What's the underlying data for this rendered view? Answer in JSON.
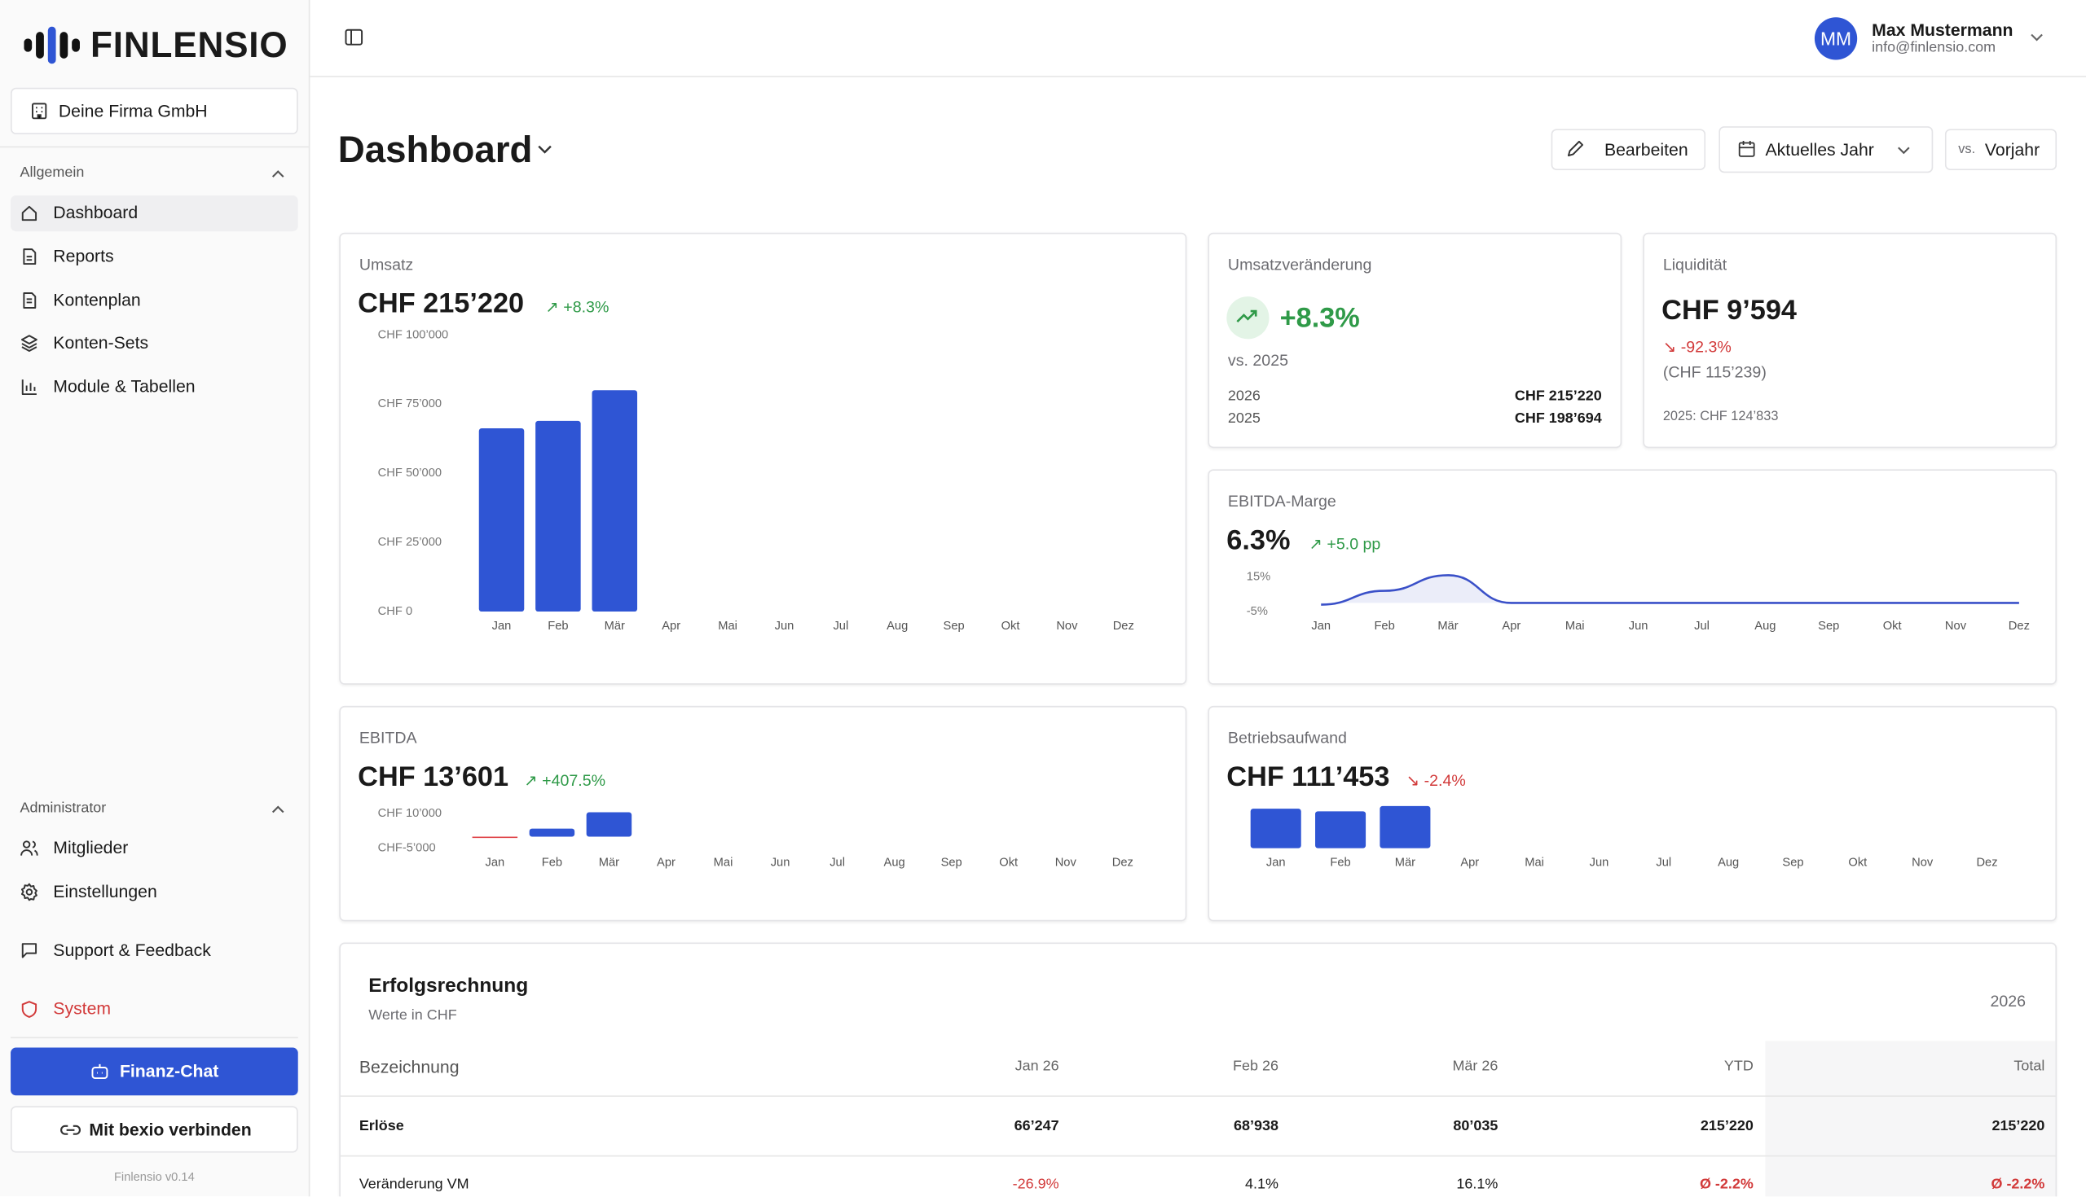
{
  "sidebar": {
    "logo": "FINLENSIO",
    "company": "Deine Firma GmbH",
    "sections": [
      {
        "title": "Allgemein",
        "items": [
          "Dashboard",
          "Reports",
          "Kontenplan",
          "Konten-Sets",
          "Module & Tabellen"
        ]
      },
      {
        "title": "Administrator",
        "items": [
          "Mitglieder",
          "Einstellungen"
        ]
      }
    ],
    "support": "Support & Feedback",
    "system": "System",
    "chat_button": "Finanz-Chat",
    "connect_button": "Mit bexio verbinden",
    "version": "Finlensio v0.14"
  },
  "header": {
    "initials": "MM",
    "name": "Max Mustermann",
    "email": "info@finlensio.com"
  },
  "page": {
    "title": "Dashboard",
    "edit": "Bearbeiten",
    "period": "Aktuelles Jahr",
    "compare_prefix": "vs.",
    "compare": "Vorjahr"
  },
  "cards": {
    "umsatz": {
      "title": "Umsatz",
      "value": "CHF 215’220",
      "change": "+8.3%",
      "chart": {
        "type": "bar",
        "categories": [
          "Jan",
          "Feb",
          "Mär",
          "Apr",
          "Mai",
          "Jun",
          "Jul",
          "Aug",
          "Sep",
          "Okt",
          "Nov",
          "Dez"
        ],
        "values": [
          66247,
          68938,
          80035,
          null,
          null,
          null,
          null,
          null,
          null,
          null,
          null,
          null
        ],
        "color": "#2f55d4",
        "negative_color": "#e0474c",
        "ylim": [
          0,
          100000
        ],
        "yticks": [
          {
            "value": 0,
            "label": "CHF 0"
          },
          {
            "value": 25000,
            "label": "CHF 25’000"
          },
          {
            "value": 50000,
            "label": "CHF 50’000"
          },
          {
            "value": 75000,
            "label": "CHF 75’000"
          },
          {
            "value": 100000,
            "label": "CHF 100’000"
          }
        ]
      }
    },
    "umsatzveraenderung": {
      "title": "Umsatzveränderung",
      "value": "+8.3%",
      "subtitle": "vs. 2025",
      "rows": [
        [
          "2026",
          "CHF 215’220"
        ],
        [
          "2025",
          "CHF 198’694"
        ]
      ]
    },
    "liquiditaet": {
      "title": "Liquidität",
      "value": "CHF 9’594",
      "change": "-92.3%",
      "previous": "(CHF 115’239)",
      "note": "2025: CHF 124’833"
    },
    "ebitda_marge": {
      "title": "EBITDA-Marge",
      "value": "6.3%",
      "change": "+5.0 pp",
      "chart": {
        "type": "line",
        "categories": [
          "Jan",
          "Feb",
          "Mär",
          "Apr",
          "Mai",
          "Jun",
          "Jul",
          "Aug",
          "Sep",
          "Okt",
          "Nov",
          "Dez"
        ],
        "values": [
          -1,
          7,
          16,
          0,
          0,
          0,
          0,
          0,
          0,
          0,
          0,
          0
        ],
        "color": "#3a50c8",
        "ylim": [
          -5,
          15
        ],
        "yticks": [
          {
            "value": 15,
            "label": "15%"
          },
          {
            "value": -5,
            "label": "-5%"
          }
        ]
      }
    },
    "ebitda": {
      "title": "EBITDA",
      "value": "CHF 13’601",
      "change": "+407.5%",
      "chart": {
        "type": "bar",
        "categories": [
          "Jan",
          "Feb",
          "Mär",
          "Apr",
          "Mai",
          "Jun",
          "Jul",
          "Aug",
          "Sep",
          "Okt",
          "Nov",
          "Dez"
        ],
        "values": [
          -500,
          3500,
          10600,
          null,
          null,
          null,
          null,
          null,
          null,
          null,
          null,
          null
        ],
        "color": "#2f55d4",
        "negative_color": "#e0474c",
        "ylim": [
          -5000,
          10000
        ],
        "yticks": [
          {
            "value": 10000,
            "label": "CHF 10’000"
          },
          {
            "value": -5000,
            "label": "CHF-5’000"
          }
        ]
      }
    },
    "betriebsaufwand": {
      "title": "Betriebsaufwand",
      "value": "CHF 111’453",
      "change": "-2.4%",
      "chart": {
        "type": "bar",
        "categories": [
          "Jan",
          "Feb",
          "Mär",
          "Apr",
          "Mai",
          "Jun",
          "Jul",
          "Aug",
          "Sep",
          "Okt",
          "Nov",
          "Dez"
        ],
        "values": [
          37150,
          34675,
          39628,
          null,
          null,
          null,
          null,
          null,
          null,
          null,
          null,
          null
        ],
        "color": "#2f55d4",
        "negative_color": "#e0474c",
        "ylim": [
          0,
          40000
        ],
        "yticks": []
      }
    }
  },
  "table": {
    "title": "Erfolgsrechnung",
    "subtitle": "Werte in CHF",
    "year": "2026",
    "columns": [
      "Bezeichnung",
      "Jan 26",
      "Feb 26",
      "Mär 26",
      "YTD",
      "Total"
    ],
    "rows": [
      [
        "Erlöse",
        "66’247",
        "68’938",
        "80’035",
        "215’220",
        "215’220"
      ],
      [
        "Veränderung VM",
        "-26.9%",
        "4.1%",
        "16.1%",
        "Ø -2.2%",
        "Ø -2.2%"
      ]
    ]
  }
}
